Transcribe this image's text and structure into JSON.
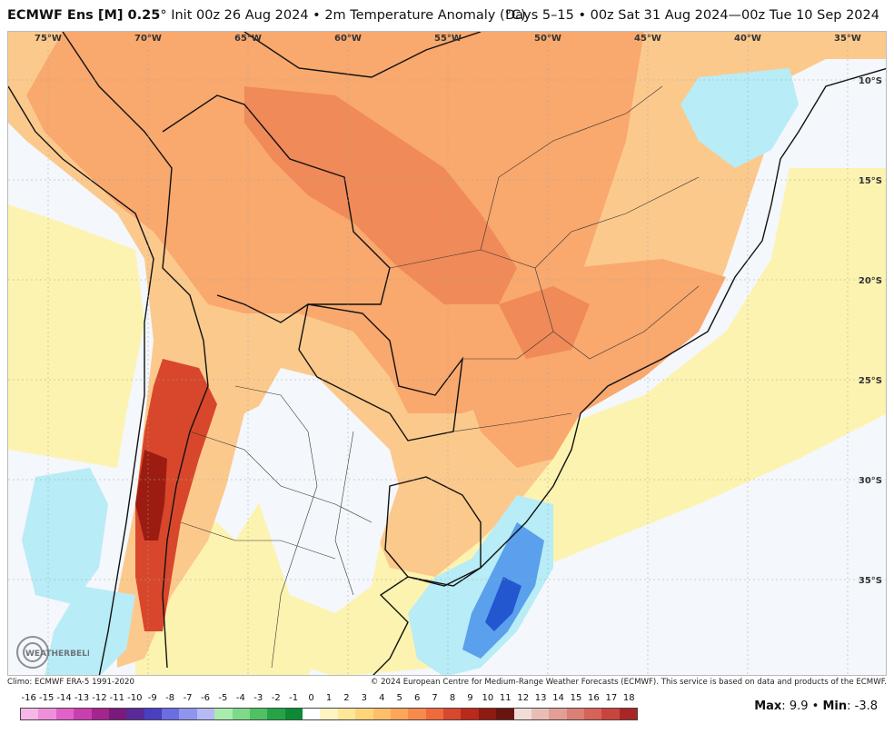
{
  "header": {
    "model": "ECMWF Ens [M] 0.25",
    "degree_symbol": "°",
    "init": "Init 00z 26 Aug 2024",
    "separator": "•",
    "variable": "2m Temperature Anomaly (°C)",
    "valid": "Days 5–15 • 00z Sat 31 Aug 2024—00z Tue 10 Sep 2024"
  },
  "map": {
    "top_axis_labels": [
      "75°W",
      "70°W",
      "65°W",
      "60°W",
      "55°W",
      "50°W",
      "45°W",
      "40°W",
      "35°W"
    ],
    "right_axis_labels": [
      "10°S",
      "15°S",
      "20°S",
      "25°S",
      "30°S",
      "35°S"
    ],
    "colors": {
      "ocean_neutral": "#f4f7fb",
      "pale_yellow": "#fdf3b0",
      "light_orange": "#fcc98d",
      "orange": "#f9a86e",
      "deep_orange": "#f08a58",
      "red": "#d8472b",
      "dark_red": "#9c1c12",
      "pale_blue": "#b8ecf6",
      "blue": "#5aa0ec",
      "deep_blue": "#2257d0",
      "border": "#111111",
      "state_border": "#333333"
    },
    "logo_text": "WEATHERBELL"
  },
  "credits": {
    "left": "Climo: ECMWF ERA-5 1991-2020",
    "right": "© 2024 European Centre for Medium-Range Weather Forecasts (ECMWF). This service is based on data and products of the ECMWF."
  },
  "legend": {
    "ticks": [
      "-16",
      "-15",
      "-14",
      "-13",
      "-12",
      "-11",
      "-10",
      "-9",
      "-8",
      "-7",
      "-6",
      "-5",
      "-4",
      "-3",
      "-2",
      "-1",
      "0",
      "1",
      "2",
      "3",
      "4",
      "5",
      "6",
      "7",
      "8",
      "9",
      "10",
      "11",
      "12",
      "13",
      "14",
      "15",
      "16",
      "17",
      "18"
    ],
    "colors": [
      "#f7b6e8",
      "#ef8fdb",
      "#e062c9",
      "#c93fb0",
      "#a4258e",
      "#7a1a7c",
      "#5b2a9a",
      "#4a3fc0",
      "#6a6ee0",
      "#8f95ee",
      "#b6b9f4",
      "#a8ecb0",
      "#7ed98a",
      "#4fc162",
      "#25a447",
      "#0e8a37",
      "#ffffff",
      "#fff4c2",
      "#ffe79a",
      "#fed57a",
      "#fdbf6a",
      "#fca65c",
      "#f88a4c",
      "#ef6a3c",
      "#d9472c",
      "#b92a1c",
      "#8e1a12",
      "#6a1410",
      "#f2dcd8",
      "#e9bdb6",
      "#e39e96",
      "#dc7f76",
      "#d66258",
      "#c9443c",
      "#a82626"
    ]
  },
  "stats": {
    "max_label": "Max",
    "max_value": "9.9",
    "sep": "•",
    "min_label": "Min",
    "min_value": "-3.8"
  }
}
